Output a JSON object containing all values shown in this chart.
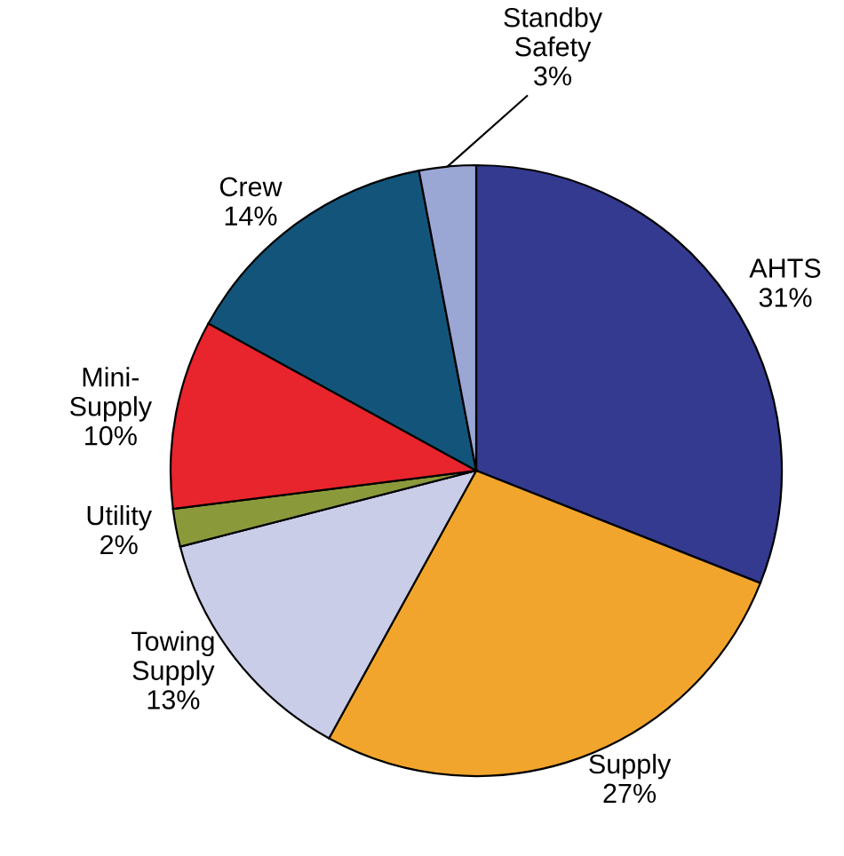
{
  "chart_data": {
    "type": "pie",
    "categories": [
      "AHTS",
      "Supply",
      "Towing\nSupply",
      "Utility",
      "Mini-\nSupply",
      "Crew",
      "Standby\nSafety"
    ],
    "values": [
      31,
      27,
      13,
      2,
      10,
      14,
      3
    ],
    "value_labels": [
      "31%",
      "27%",
      "13%",
      "2%",
      "10%",
      "14%",
      "3%"
    ],
    "colors": [
      "#333a8f",
      "#f2a52c",
      "#c9cde8",
      "#8a9a3a",
      "#e8242c",
      "#13557a",
      "#9aa6d4"
    ],
    "legend": false
  }
}
